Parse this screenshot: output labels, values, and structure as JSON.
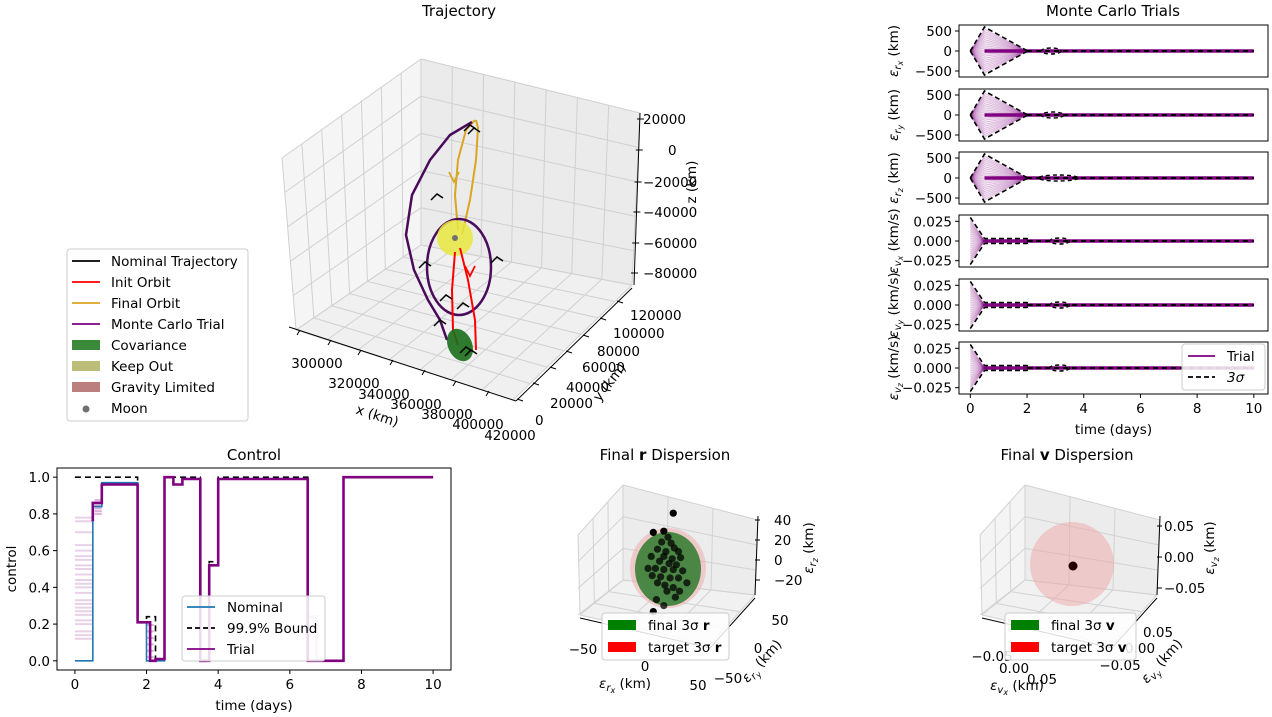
{
  "figure": {
    "panels": [
      "Trajectory",
      "Monte Carlo Trials",
      "Control",
      "Final r Dispersion",
      "Final v Dispersion"
    ]
  },
  "colors": {
    "nominal": "#000000",
    "init_orbit": "#ff0000",
    "final_orbit": "#daa520",
    "trial": "#800080",
    "covariance": "#3a8a3a",
    "keep_out": "#bdbd7a",
    "gravity_limited": "#bc7f7f",
    "moon": "#707070",
    "nominal_control": "#1f77b4",
    "final_sigma": "#008000",
    "target_sigma": "#ff0000"
  },
  "chart_data": [
    {
      "id": "trajectory",
      "type": "line",
      "projection": "3d",
      "title": "Trajectory",
      "xlabel": "x (km)",
      "ylabel": "y (km)",
      "zlabel": "z (km)",
      "xticks": [
        "300000",
        "320000",
        "340000",
        "360000",
        "380000",
        "400000",
        "420000"
      ],
      "yticks": [
        "0",
        "20000",
        "40000",
        "60000",
        "80000",
        "100000",
        "120000"
      ],
      "zticks": [
        "20000",
        "0",
        "−20000",
        "−40000",
        "−60000",
        "−80000"
      ],
      "xlim": [
        300000,
        420000
      ],
      "ylim": [
        0,
        120000
      ],
      "zlim": [
        -80000,
        20000
      ],
      "legend": {
        "placement": "left",
        "entries": [
          {
            "label": "Nominal Trajectory",
            "kind": "line",
            "color_key": "nominal"
          },
          {
            "label": "Init Orbit",
            "kind": "line",
            "color_key": "init_orbit"
          },
          {
            "label": "Final Orbit",
            "kind": "line",
            "color_key": "final_orbit"
          },
          {
            "label": "Monte Carlo Trial",
            "kind": "line",
            "color_key": "trial"
          },
          {
            "label": "Covariance",
            "kind": "patch",
            "color_key": "covariance"
          },
          {
            "label": "Keep Out",
            "kind": "patch",
            "color_key": "keep_out"
          },
          {
            "label": "Gravity Limited",
            "kind": "patch",
            "color_key": "gravity_limited"
          },
          {
            "label": "Moon",
            "kind": "dot",
            "color_key": "moon"
          }
        ]
      }
    },
    {
      "id": "monte_carlo",
      "type": "line",
      "title": "Monte Carlo Trials",
      "xlabel": "time (days)",
      "xlim": [
        -0.4,
        10.5
      ],
      "xticks": [
        "0",
        "2",
        "4",
        "6",
        "8",
        "10"
      ],
      "subplots": [
        {
          "ylabel": "ε_rx (km)",
          "label_main": "ε",
          "sub": "r",
          "subsub": "x",
          "unit": "(km)",
          "yticks": [
            "500",
            "0",
            "−500"
          ],
          "yvals": [
            500,
            0,
            -500
          ],
          "ylim": [
            -650,
            650
          ],
          "sigma": [
            [
              0,
              0
            ],
            [
              0.5,
              600
            ],
            [
              2,
              0
            ],
            [
              10,
              0
            ]
          ],
          "bulge": [
            [
              2.5,
              3.2,
              40
            ]
          ]
        },
        {
          "ylabel": "ε_ry (km)",
          "label_main": "ε",
          "sub": "r",
          "subsub": "y",
          "unit": "(km)",
          "yticks": [
            "500",
            "0",
            "−500"
          ],
          "yvals": [
            500,
            0,
            -500
          ],
          "ylim": [
            -650,
            650
          ],
          "sigma": [
            [
              0,
              0
            ],
            [
              0.5,
              600
            ],
            [
              2,
              0
            ],
            [
              10,
              0
            ]
          ],
          "bulge": [
            [
              2.5,
              3.3,
              60
            ]
          ]
        },
        {
          "ylabel": "ε_rz (km)",
          "label_main": "ε",
          "sub": "r",
          "subsub": "z",
          "unit": "(km)",
          "yticks": [
            "500",
            "0",
            "−500"
          ],
          "yvals": [
            500,
            0,
            -500
          ],
          "ylim": [
            -650,
            650
          ],
          "sigma": [
            [
              0,
              0
            ],
            [
              0.5,
              600
            ],
            [
              2,
              0
            ],
            [
              10,
              0
            ]
          ],
          "bulge": [
            [
              2.4,
              3.8,
              60
            ]
          ]
        },
        {
          "ylabel": "ε_vx (km/s)",
          "label_main": "ε",
          "sub": "v",
          "subsub": "x",
          "unit": "(km/s)",
          "yticks": [
            "0.025",
            "0.000",
            "−0.025"
          ],
          "yvals": [
            0.025,
            0,
            -0.025
          ],
          "ylim": [
            -0.033,
            0.033
          ],
          "sigma": [
            [
              0,
              0.03
            ],
            [
              0.5,
              0.003
            ],
            [
              2,
              0.003
            ],
            [
              10,
              0
            ]
          ],
          "bulge": [
            [
              2.8,
              3.5,
              0.002
            ]
          ]
        },
        {
          "ylabel": "ε_vy (km/s)",
          "label_main": "ε",
          "sub": "v",
          "subsub": "y",
          "unit": "(km/s)",
          "yticks": [
            "0.025",
            "0.000",
            "−0.025"
          ],
          "yvals": [
            0.025,
            0,
            -0.025
          ],
          "ylim": [
            -0.033,
            0.033
          ],
          "sigma": [
            [
              0,
              0.03
            ],
            [
              0.5,
              0.003
            ],
            [
              2,
              0.003
            ],
            [
              10,
              0
            ]
          ],
          "bulge": [
            [
              2.8,
              3.5,
              0.002
            ]
          ]
        },
        {
          "ylabel": "ε_vz (km/s)",
          "label_main": "ε",
          "sub": "v",
          "subsub": "z",
          "unit": "(km/s)",
          "yticks": [
            "0.025",
            "0.000",
            "−0.025"
          ],
          "yvals": [
            0.025,
            0,
            -0.025
          ],
          "ylim": [
            -0.033,
            0.033
          ],
          "sigma": [
            [
              0,
              0.03
            ],
            [
              0.5,
              0.003
            ],
            [
              2,
              0.003
            ],
            [
              10,
              0
            ]
          ],
          "bulge": [
            [
              2.8,
              3.5,
              0.002
            ]
          ]
        }
      ],
      "legend": {
        "placement": "lower-right of last subplot",
        "entries": [
          {
            "label": "Trial",
            "kind": "line",
            "color_key": "trial"
          },
          {
            "label": "3σ",
            "kind": "dashed",
            "color_key": "nominal"
          }
        ]
      }
    },
    {
      "id": "control",
      "type": "line",
      "title": "Control",
      "xlabel": "time (days)",
      "ylabel": "control",
      "xlim": [
        -0.5,
        10.5
      ],
      "ylim": [
        -0.05,
        1.05
      ],
      "xticks": [
        "0",
        "2",
        "4",
        "6",
        "8",
        "10"
      ],
      "yticks": [
        "0.0",
        "0.2",
        "0.4",
        "0.6",
        "0.8",
        "1.0"
      ],
      "series": [
        {
          "name": "Nominal",
          "style": "solid",
          "color_key": "nominal_control",
          "x": [
            0,
            0.5,
            0.5,
            0.75,
            0.75,
            1.75,
            1.75,
            2.0,
            2.0,
            2.5,
            2.5,
            2.75,
            2.75,
            3.0,
            3.0,
            3.5,
            3.5,
            3.75,
            3.75,
            4.0,
            4.0,
            6.5,
            6.5,
            7.5,
            7.5,
            10
          ],
          "y": [
            0,
            0,
            0.84,
            0.84,
            0.97,
            0.97,
            0.21,
            0.21,
            0,
            0,
            1.0,
            1.0,
            0.96,
            0.96,
            0.99,
            0.99,
            0.0,
            0.0,
            0.52,
            0.52,
            0.99,
            0.99,
            0.0,
            0.0,
            1.0,
            1.0
          ]
        },
        {
          "name": "99.9% Bound",
          "style": "dashed",
          "color_key": "nominal",
          "x": [
            0,
            1.75,
            1.75,
            2.0,
            2.0,
            2.25,
            2.25,
            2.5,
            2.5,
            3.5,
            3.5,
            3.75,
            3.75,
            4.0,
            4.0,
            6.5,
            6.5,
            7.5,
            7.5,
            10
          ],
          "y": [
            1.0,
            1.0,
            0.21,
            0.21,
            0.24,
            0.24,
            0.01,
            0.01,
            1.0,
            1.0,
            0.0,
            0.0,
            0.54,
            0.54,
            1.0,
            1.0,
            0.0,
            0.0,
            1.0,
            1.0
          ]
        },
        {
          "name": "Trial",
          "style": "solid",
          "color_key": "trial",
          "x": [
            0.5,
            0.5,
            0.75,
            0.75,
            1.75,
            1.75,
            2.1,
            2.1,
            2.25,
            2.25,
            2.5,
            2.5,
            2.75,
            2.75,
            3.0,
            3.0,
            3.5,
            3.5,
            3.75,
            3.75,
            4.0,
            4.0,
            6.5,
            6.5,
            7.5,
            7.5,
            10
          ],
          "y": [
            0.76,
            0.86,
            0.86,
            0.96,
            0.96,
            0.21,
            0.21,
            0.0,
            0.0,
            0.01,
            0.01,
            1.0,
            1.0,
            0.96,
            0.96,
            0.99,
            0.99,
            0.0,
            0.0,
            0.52,
            0.52,
            0.99,
            0.99,
            0.0,
            0.0,
            1.0,
            1.0
          ]
        }
      ],
      "initial_trial_levels": [
        0.78,
        0.76,
        0.7,
        0.63,
        0.6,
        0.57,
        0.55,
        0.52,
        0.5,
        0.47,
        0.44,
        0.42,
        0.4,
        0.37,
        0.33,
        0.31,
        0.29,
        0.27,
        0.25,
        0.22,
        0.2,
        0.16,
        0.14,
        0.12
      ],
      "legend": {
        "placement": "lower-center",
        "entries": [
          {
            "label": "Nominal",
            "kind": "line",
            "color_key": "nominal_control"
          },
          {
            "label": "99.9% Bound",
            "kind": "dashed",
            "color_key": "nominal"
          },
          {
            "label": "Trial",
            "kind": "line",
            "color_key": "trial"
          }
        ]
      }
    },
    {
      "id": "final_r",
      "type": "scatter",
      "projection": "3d",
      "title_prefix": "Final ",
      "title_bold": "r",
      "title_suffix": " Dispersion",
      "xlabel": "ε_rx (km)",
      "ylabel": "ε_ry (km)",
      "zlabel": "ε_rz (km)",
      "xticks": [
        "−50",
        "0",
        "50"
      ],
      "yticks": [
        "−50",
        "0",
        "50"
      ],
      "zticks": [
        "40",
        "20",
        "0",
        "−20"
      ],
      "points_xz": [
        [
          5,
          44
        ],
        [
          -14,
          28
        ],
        [
          -4,
          29
        ],
        [
          0,
          24
        ],
        [
          -6,
          20
        ],
        [
          3,
          19
        ],
        [
          -10,
          14
        ],
        [
          6,
          15
        ],
        [
          -2,
          12
        ],
        [
          10,
          12
        ],
        [
          -16,
          8
        ],
        [
          -4,
          8
        ],
        [
          4,
          6
        ],
        [
          12,
          7
        ],
        [
          -8,
          4
        ],
        [
          1,
          2
        ],
        [
          8,
          1
        ],
        [
          -19,
          -2
        ],
        [
          -12,
          -2
        ],
        [
          -4,
          -3
        ],
        [
          5,
          -3
        ],
        [
          14,
          -4
        ],
        [
          -15,
          -8
        ],
        [
          -7,
          -9
        ],
        [
          2,
          -10
        ],
        [
          10,
          -10
        ],
        [
          18,
          -14
        ],
        [
          -10,
          -14
        ],
        [
          -3,
          -16
        ],
        [
          5,
          -18
        ],
        [
          -1,
          -21
        ],
        [
          11,
          -21
        ],
        [
          -11,
          -28
        ],
        [
          7,
          -26
        ],
        [
          -4,
          -33
        ],
        [
          -14,
          -38
        ]
      ],
      "legend": {
        "placement": "lower-left",
        "entries": [
          {
            "label_prefix": "final 3σ ",
            "label_bold": "r",
            "kind": "patch",
            "color_key": "final_sigma"
          },
          {
            "label_prefix": "target 3σ ",
            "label_bold": "r",
            "kind": "patch",
            "color_key": "target_sigma"
          }
        ]
      }
    },
    {
      "id": "final_v",
      "type": "scatter",
      "projection": "3d",
      "title_prefix": "Final ",
      "title_bold": "v",
      "title_suffix": " Dispersion",
      "xlabel": "ε_vx (km)",
      "ylabel": "ε_vy (km)",
      "zlabel": "ε_vz (km)",
      "xticks": [
        "−0.05",
        "0.00",
        "0.05"
      ],
      "yticks": [
        "−0.05",
        "0.00",
        "0.05"
      ],
      "zticks": [
        "0.05",
        "0.00",
        "−0.05"
      ],
      "points_xz": [
        [
          0,
          0
        ]
      ],
      "legend": {
        "placement": "lower-left",
        "entries": [
          {
            "label_prefix": "final 3σ ",
            "label_bold": "v",
            "kind": "patch",
            "color_key": "final_sigma"
          },
          {
            "label_prefix": "target 3σ ",
            "label_bold": "v",
            "kind": "patch",
            "color_key": "target_sigma"
          }
        ]
      }
    }
  ]
}
